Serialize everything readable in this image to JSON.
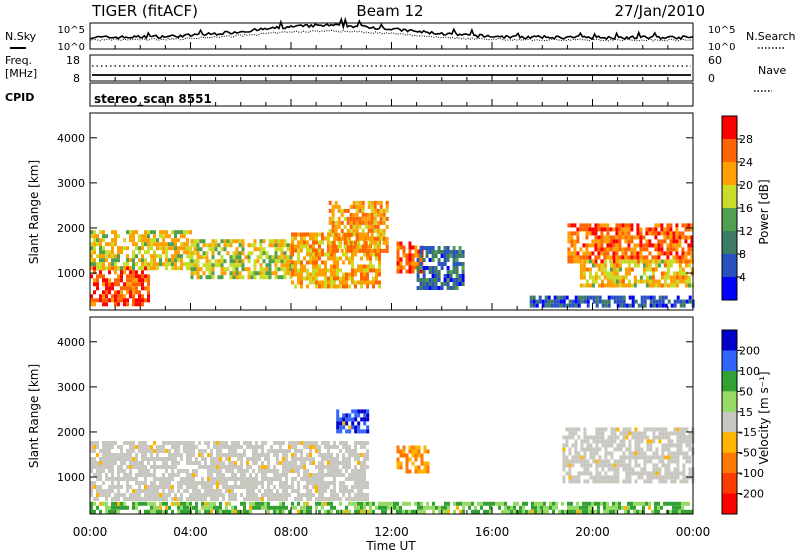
{
  "header": {
    "station": "TIGER (fitACF)",
    "beam": "Beam 12",
    "date": "27/Jan/2010"
  },
  "strip": {
    "nsky_label": "N.Sky",
    "nsearch_label": "N.Search",
    "noise_ticks_left": [
      "10^5",
      "10^0"
    ],
    "noise_ticks_right": [
      "10^5",
      "10^0"
    ],
    "freq_label_1": "Freq.",
    "freq_label_2": "[MHz]",
    "freq_ticks": [
      "18",
      "8"
    ],
    "nave_ticks": [
      "60",
      "0"
    ],
    "nave_label": "Nave",
    "cpid_label": "CPID",
    "cpid_value": "stereo_scan 8551"
  },
  "chart_data": [
    {
      "type": "heatmap",
      "name": "power",
      "ylabel": "Slant Range [km]",
      "ylim": [
        180,
        4550
      ],
      "yticks": [
        "1000",
        "2000",
        "3000",
        "4000"
      ],
      "xlim": [
        0,
        24
      ],
      "colorbar": {
        "label": "Power [dB]",
        "ticks": [
          "4",
          "8",
          "12",
          "16",
          "20",
          "24",
          "28"
        ],
        "range": [
          0,
          32
        ],
        "colors": [
          "#0000ff",
          "#2850c0",
          "#3c7c64",
          "#50a050",
          "#c8dc28",
          "#ffa000",
          "#ff6400",
          "#ff0000"
        ]
      },
      "regions": [
        {
          "t": [
            0.0,
            2.3
          ],
          "r": [
            350,
            1150
          ],
          "level": 27
        },
        {
          "t": [
            0.0,
            4.0
          ],
          "r": [
            1100,
            1950
          ],
          "level": 19
        },
        {
          "t": [
            4.0,
            8.0
          ],
          "r": [
            900,
            1750
          ],
          "level": 18
        },
        {
          "t": [
            8.0,
            11.5
          ],
          "r": [
            700,
            1900
          ],
          "level": 22
        },
        {
          "t": [
            9.5,
            11.8
          ],
          "r": [
            1500,
            2600
          ],
          "level": 23
        },
        {
          "t": [
            12.2,
            13.2
          ],
          "r": [
            1000,
            1700
          ],
          "level": 27
        },
        {
          "t": [
            13.0,
            14.8
          ],
          "r": [
            700,
            1600
          ],
          "level": 8
        },
        {
          "t": [
            19.0,
            24.0
          ],
          "r": [
            1300,
            2100
          ],
          "level": 26
        },
        {
          "t": [
            19.5,
            24.0
          ],
          "r": [
            700,
            1300
          ],
          "level": 20
        },
        {
          "t": [
            17.5,
            24.0
          ],
          "r": [
            250,
            500
          ],
          "level": 6
        }
      ]
    },
    {
      "type": "heatmap",
      "name": "velocity",
      "ylabel": "Slant Range [km]",
      "ylim": [
        180,
        4550
      ],
      "yticks": [
        "1000",
        "2000",
        "3000",
        "4000"
      ],
      "xlim": [
        0,
        24
      ],
      "xticks": [
        "00:00",
        "04:00",
        "08:00",
        "12:00",
        "16:00",
        "20:00",
        "00:00"
      ],
      "xlabel": "Time UT",
      "colorbar": {
        "label": "Velocity [m s⁻¹]",
        "ticks": [
          "200",
          "100",
          "50",
          "15",
          "-15",
          "-50",
          "-100",
          "-200"
        ],
        "colors": [
          "#0000c8",
          "#3264ff",
          "#32a032",
          "#96dc64",
          "#c8c8c0",
          "#ffb400",
          "#ff7800",
          "#ff3c00",
          "#ff0000"
        ]
      },
      "regions": [
        {
          "t": [
            0.0,
            11.0
          ],
          "r": [
            500,
            1800
          ],
          "class": "-15 to 15"
        },
        {
          "t": [
            18.8,
            24.0
          ],
          "r": [
            900,
            2100
          ],
          "class": "-15 to 15"
        },
        {
          "t": [
            12.2,
            13.4
          ],
          "r": [
            1100,
            1700
          ],
          "class": "-50 to -100"
        },
        {
          "t": [
            9.8,
            11.0
          ],
          "r": [
            2000,
            2500
          ],
          "class": "100 to 200"
        },
        {
          "t": [
            0.0,
            24.0
          ],
          "r": [
            220,
            450
          ],
          "class": "15 to 100"
        }
      ]
    }
  ]
}
